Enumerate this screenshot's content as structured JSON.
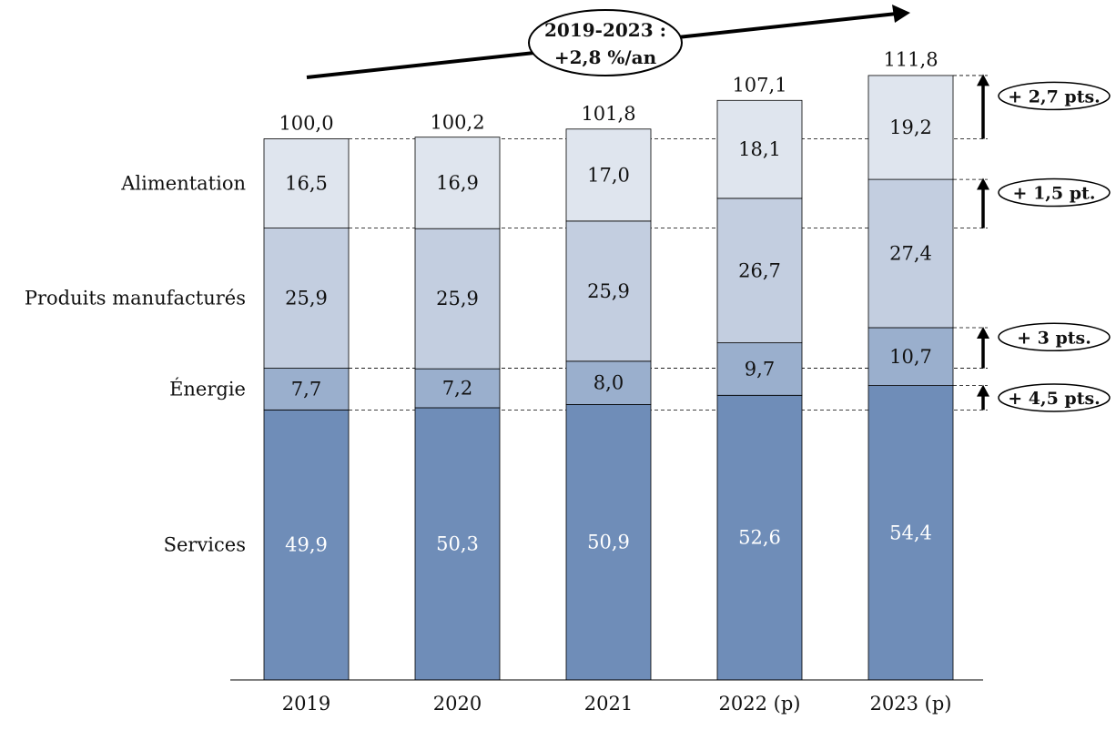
{
  "chart_data": {
    "type": "bar",
    "stacked": true,
    "categories": [
      "2019",
      "2020",
      "2021",
      "2022 (p)",
      "2023 (p)"
    ],
    "series": [
      {
        "name": "Services",
        "values": [
          49.9,
          50.3,
          50.9,
          52.6,
          54.4
        ],
        "color": "#6f8db8",
        "value_labels": [
          "49,9",
          "50,3",
          "50,9",
          "52,6",
          "54,4"
        ]
      },
      {
        "name": "Énergie",
        "values": [
          7.7,
          7.2,
          8.0,
          9.7,
          10.7
        ],
        "color": "#9aafcd",
        "value_labels": [
          "7,7",
          "7,2",
          "8,0",
          "9,7",
          "10,7"
        ]
      },
      {
        "name": "Produits manufacturés",
        "values": [
          25.9,
          25.9,
          25.9,
          26.7,
          27.4
        ],
        "color": "#c3cee0",
        "value_labels": [
          "25,9",
          "25,9",
          "25,9",
          "26,7",
          "27,4"
        ]
      },
      {
        "name": "Alimentation",
        "values": [
          16.5,
          16.9,
          17.0,
          18.1,
          19.2
        ],
        "color": "#dfe5ee",
        "value_labels": [
          "16,5",
          "16,9",
          "17,0",
          "18,1",
          "19,2"
        ]
      }
    ],
    "totals": [
      100.0,
      100.2,
      101.8,
      107.1,
      111.8
    ],
    "total_labels": [
      "100,0",
      "100,2",
      "101,8",
      "107,1",
      "111,8"
    ],
    "ylim": [
      0,
      112
    ],
    "grid": false,
    "legend": "left",
    "trend": {
      "line1": "2019-2023 :",
      "line2": "+2,8 %/an"
    },
    "annotations": [
      {
        "label": "+ 2,7 pts.",
        "from": 100.0,
        "to": 111.8
      },
      {
        "label": "+ 1,5 pt.",
        "from": 83.5,
        "to": 92.6
      },
      {
        "label": "+ 3 pts.",
        "from": 57.6,
        "to": 65.1
      },
      {
        "label": "+ 4,5 pts.",
        "from": 49.9,
        "to": 54.4
      }
    ]
  }
}
